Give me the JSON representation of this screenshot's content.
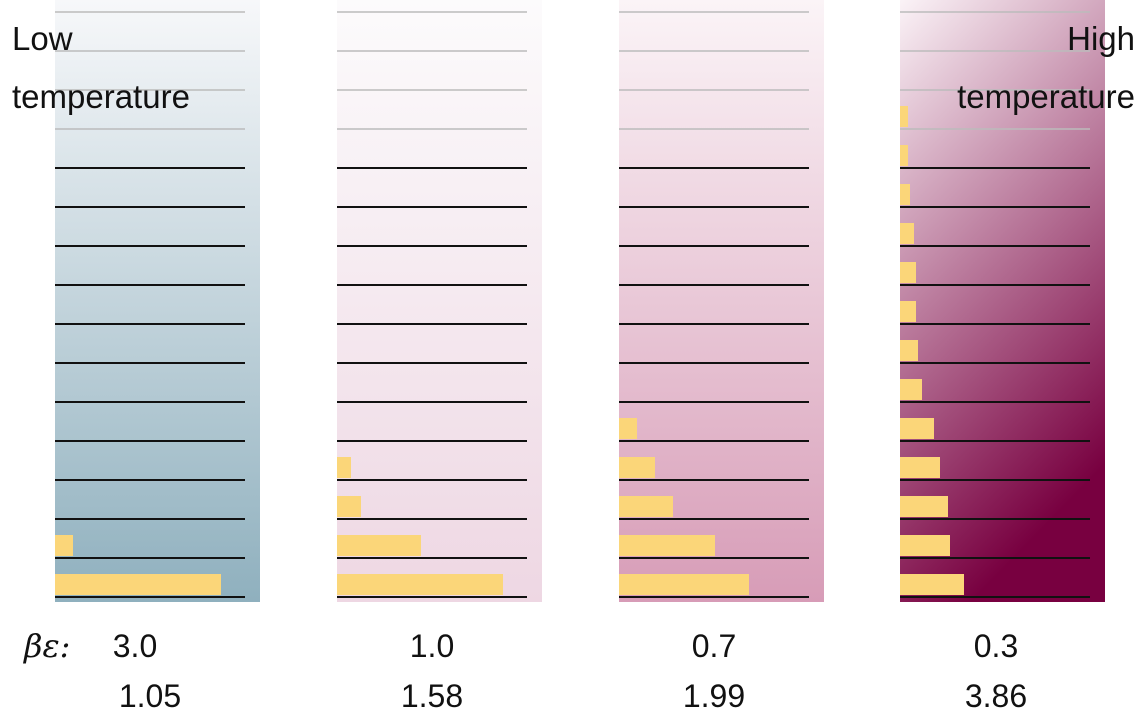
{
  "labels": {
    "low": [
      "Low",
      "temperature"
    ],
    "high": [
      "High",
      "temperature"
    ],
    "beta_symbol": "βε:"
  },
  "colors": {
    "population_bar": "#fbd679",
    "level_line": "#111111",
    "faded_line": "#bbbbbb"
  },
  "panels": [
    {
      "beta_epsilon": "3.0",
      "partition_value": "1.05",
      "gradient": [
        "#f7f8fa",
        "#8fb0be"
      ],
      "populations": [
        0.83,
        0.09,
        0,
        0,
        0,
        0,
        0,
        0,
        0,
        0,
        0,
        0,
        0,
        0,
        0
      ]
    },
    {
      "beta_epsilon": "1.0",
      "partition_value": "1.58",
      "gradient": [
        "#fcfbfc",
        "#eed7e3"
      ],
      "populations": [
        0.83,
        0.42,
        0.12,
        0.07,
        0,
        0,
        0,
        0,
        0,
        0,
        0,
        0,
        0,
        0,
        0
      ]
    },
    {
      "beta_epsilon": "0.7",
      "partition_value": "1.99",
      "gradient": [
        "#fbf4f7",
        "#d79cb7"
      ],
      "populations": [
        0.65,
        0.48,
        0.27,
        0.18,
        0.09,
        0,
        0,
        0,
        0,
        0,
        0,
        0,
        0,
        0,
        0
      ]
    },
    {
      "beta_epsilon": "0.3",
      "partition_value": "3.86",
      "gradient": [
        "#fbf3f7",
        "#780040"
      ],
      "populations": [
        0.32,
        0.25,
        0.24,
        0.2,
        0.17,
        0.11,
        0.09,
        0.08,
        0.08,
        0.07,
        0.05,
        0.04,
        0.04,
        0,
        0
      ]
    }
  ]
}
